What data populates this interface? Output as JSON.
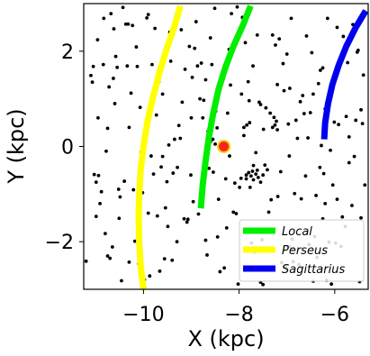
{
  "chart_data": {
    "type": "scatter",
    "xlabel": "X (kpc)",
    "ylabel": "Y (kpc)",
    "xlim": [
      -11.25,
      -5.3
    ],
    "ylim": [
      -3.0,
      3.0
    ],
    "xticks": [
      -10,
      -8,
      -6
    ],
    "yticks": [
      -2,
      0,
      2
    ],
    "xtick_labels": [
      "−10",
      "−8",
      "−6"
    ],
    "ytick_labels": [
      "−2",
      "0",
      "2"
    ],
    "grid": false,
    "legend_position": "lower-right",
    "sun": {
      "x": -8.32,
      "y": 0.0,
      "fill": "#ff2020",
      "edge": "#e8d800"
    },
    "series": [
      {
        "name": "Local",
        "color": "#00ee00",
        "points": [
          [
            -8.8,
            -1.3
          ],
          [
            -8.76,
            -0.8
          ],
          [
            -8.7,
            -0.3
          ],
          [
            -8.63,
            0.2
          ],
          [
            -8.54,
            0.7
          ],
          [
            -8.43,
            1.2
          ],
          [
            -8.29,
            1.65
          ],
          [
            -8.12,
            2.1
          ],
          [
            -7.92,
            2.55
          ],
          [
            -7.76,
            2.95
          ]
        ]
      },
      {
        "name": "Perseus",
        "color": "#ffff00",
        "points": [
          [
            -10.0,
            -3.0
          ],
          [
            -10.06,
            -2.5
          ],
          [
            -10.09,
            -2.0
          ],
          [
            -10.1,
            -1.5
          ],
          [
            -10.09,
            -1.0
          ],
          [
            -10.06,
            -0.5
          ],
          [
            -10.0,
            0.0
          ],
          [
            -9.92,
            0.5
          ],
          [
            -9.81,
            1.0
          ],
          [
            -9.68,
            1.5
          ],
          [
            -9.53,
            2.0
          ],
          [
            -9.36,
            2.5
          ],
          [
            -9.23,
            2.95
          ]
        ]
      },
      {
        "name": "Sagittarius",
        "color": "#0000ee",
        "points": [
          [
            -6.22,
            0.15
          ],
          [
            -6.2,
            0.5
          ],
          [
            -6.14,
            0.9
          ],
          [
            -6.05,
            1.3
          ],
          [
            -5.92,
            1.7
          ],
          [
            -5.76,
            2.1
          ],
          [
            -5.56,
            2.5
          ],
          [
            -5.35,
            2.85
          ]
        ]
      }
    ],
    "stars": [
      [
        -11.2,
        -2.41
      ],
      [
        -11.1,
        1.49
      ],
      [
        -11.07,
        1.35
      ],
      [
        -11.05,
        1.68
      ],
      [
        -11.03,
        -0.59
      ],
      [
        -10.99,
        -1.47
      ],
      [
        -10.99,
        -0.75
      ],
      [
        -10.96,
        2.24
      ],
      [
        -10.94,
        -0.61
      ],
      [
        -10.91,
        -1.2
      ],
      [
        -10.88,
        -0.95
      ],
      [
        -10.84,
        1.72
      ],
      [
        -10.83,
        2.69
      ],
      [
        -10.8,
        -1.83
      ],
      [
        -10.78,
        -0.1
      ],
      [
        -10.75,
        0.38
      ],
      [
        -10.72,
        1.25
      ],
      [
        -10.68,
        2.79
      ],
      [
        -10.65,
        -2.11
      ],
      [
        -10.63,
        1.43
      ],
      [
        -10.62,
        2.47
      ],
      [
        -10.58,
        1.89
      ],
      [
        -10.55,
        1.66
      ],
      [
        -10.52,
        -0.9
      ],
      [
        -10.51,
        -1.51
      ],
      [
        -10.49,
        -1.06
      ],
      [
        -10.46,
        -2.82
      ],
      [
        -10.43,
        2.92
      ],
      [
        -10.4,
        -0.73
      ],
      [
        -10.37,
        2.57
      ],
      [
        -10.34,
        1.69
      ],
      [
        -10.32,
        2.57
      ],
      [
        -10.3,
        -2.43
      ],
      [
        -10.26,
        1.12
      ],
      [
        -10.23,
        2.54
      ],
      [
        -10.21,
        -0.91
      ],
      [
        -10.18,
        -1.99
      ],
      [
        -10.15,
        2.09
      ],
      [
        -10.13,
        1.68
      ],
      [
        -10.1,
        -2.46
      ],
      [
        -10.07,
        0.82
      ],
      [
        -10.05,
        -0.12
      ],
      [
        -10.02,
        -0.97
      ],
      [
        -9.98,
        -2.8
      ],
      [
        -9.95,
        0.27
      ],
      [
        -9.93,
        2.7
      ],
      [
        -9.9,
        2.77
      ],
      [
        -9.87,
        -2.72
      ],
      [
        -9.84,
        -0.2
      ],
      [
        -9.82,
        1.72
      ],
      [
        -9.79,
        -0.58
      ],
      [
        -9.76,
        2.48
      ],
      [
        -9.73,
        0.66
      ],
      [
        -9.71,
        -1.46
      ],
      [
        -9.68,
        1.36
      ],
      [
        -9.66,
        -2.62
      ],
      [
        -9.63,
        -0.43
      ],
      [
        -9.6,
        -0.21
      ],
      [
        -9.56,
        -2.36
      ],
      [
        -9.54,
        -1.29
      ],
      [
        -9.51,
        -0.74
      ],
      [
        -9.49,
        -1.68
      ],
      [
        -9.47,
        0.03
      ],
      [
        -9.43,
        1.79
      ],
      [
        -9.4,
        -2.39
      ],
      [
        -9.38,
        -0.56
      ],
      [
        -9.35,
        0.15
      ],
      [
        -9.32,
        2.59
      ],
      [
        -9.29,
        -0.44
      ],
      [
        -9.26,
        0.44
      ],
      [
        -9.23,
        0.17
      ],
      [
        -9.21,
        2.45
      ],
      [
        -9.19,
        0.93
      ],
      [
        -9.15,
        -1.52
      ],
      [
        -9.13,
        1.62
      ],
      [
        -9.09,
        -1.59
      ],
      [
        -9.07,
        -1.53
      ],
      [
        -9.04,
        2.1
      ],
      [
        -9.01,
        -0.6
      ],
      [
        -8.98,
        1.45
      ],
      [
        -8.96,
        -1.16
      ],
      [
        -8.93,
        2.06
      ],
      [
        -8.9,
        2.62
      ],
      [
        -8.87,
        1.69
      ],
      [
        -8.85,
        -1.42
      ],
      [
        -8.82,
        1.0
      ],
      [
        -8.79,
        1.75
      ],
      [
        -8.76,
        0.6
      ],
      [
        -8.74,
        0.97
      ],
      [
        -8.7,
        -1.97
      ],
      [
        -8.67,
        -2.28
      ],
      [
        -8.65,
        0.32
      ],
      [
        -8.63,
        -0.46
      ],
      [
        -8.6,
        2.28
      ],
      [
        -8.57,
        1.72
      ],
      [
        -8.54,
        -0.54
      ],
      [
        -8.51,
        2.9
      ],
      [
        -8.49,
        0.74
      ],
      [
        -8.46,
        0.39
      ],
      [
        -8.43,
        -1.11
      ],
      [
        -8.4,
        -2.63
      ],
      [
        -8.37,
        -0.02
      ],
      [
        -8.34,
        1.56
      ],
      [
        -8.31,
        -2.55
      ],
      [
        -8.28,
        -0.68
      ],
      [
        -8.26,
        -1.71
      ],
      [
        -8.24,
        0.7
      ],
      [
        -8.21,
        2.04
      ],
      [
        -8.18,
        1.29
      ],
      [
        -8.16,
        2.79
      ],
      [
        -8.12,
        -1.38
      ],
      [
        -8.09,
        -0.77
      ],
      [
        -8.06,
        -1.41
      ],
      [
        -8.04,
        2.93
      ],
      [
        -8.02,
        -2.89
      ],
      [
        -7.99,
        -0.86
      ],
      [
        -7.96,
        -0.67
      ],
      [
        -7.93,
        2.71
      ],
      [
        -7.9,
        0.23
      ],
      [
        -7.87,
        2.18
      ],
      [
        -7.85,
        -0.6
      ],
      [
        -7.81,
        1.36
      ],
      [
        -7.79,
        0.96
      ],
      [
        -7.77,
        -0.86
      ],
      [
        -7.74,
        -2.03
      ],
      [
        -7.71,
        1.69
      ],
      [
        -7.68,
        -2.22
      ],
      [
        -7.65,
        -0.13
      ],
      [
        -7.62,
        2.34
      ],
      [
        -7.6,
        -1.8
      ],
      [
        -7.58,
        0.93
      ],
      [
        -7.55,
        0.88
      ],
      [
        -7.52,
        -1.96
      ],
      [
        -7.49,
        0.36
      ],
      [
        -7.46,
        -0.39
      ],
      [
        -7.44,
        0.81
      ],
      [
        -7.41,
        -0.49
      ],
      [
        -7.38,
        -1.38
      ],
      [
        -7.35,
        0.7
      ],
      [
        -7.33,
        -1.12
      ],
      [
        -7.3,
        2.34
      ],
      [
        -7.27,
        0.61
      ],
      [
        -7.24,
        2.13
      ],
      [
        -7.22,
        0.53
      ],
      [
        -7.19,
        -1.05
      ],
      [
        -7.16,
        2.26
      ],
      [
        -7.13,
        -0.53
      ],
      [
        -7.11,
        -2.44
      ],
      [
        -7.08,
        1.74
      ],
      [
        -7.06,
        1.17
      ],
      [
        -7.03,
        -2.52
      ],
      [
        -7.0,
        1.94
      ],
      [
        -6.97,
        0.47
      ],
      [
        -6.94,
        1.22
      ],
      [
        -6.91,
        2.69
      ],
      [
        -6.89,
        -1.95
      ],
      [
        -6.87,
        -2.42
      ],
      [
        -6.84,
        -0.99
      ],
      [
        -6.81,
        0.55
      ],
      [
        -6.78,
        0.17
      ],
      [
        -6.75,
        -2.48
      ],
      [
        -6.72,
        0.94
      ],
      [
        -6.7,
        -2.56
      ],
      [
        -6.67,
        1.07
      ],
      [
        -6.64,
        0.69
      ],
      [
        -6.61,
        -0.62
      ],
      [
        -6.59,
        2.32
      ],
      [
        -6.56,
        0.18
      ],
      [
        -6.54,
        -2.06
      ],
      [
        -6.51,
        0.71
      ],
      [
        -6.48,
        1.97
      ],
      [
        -6.45,
        -2.83
      ],
      [
        -6.42,
        -1.89
      ],
      [
        -6.39,
        -1.03
      ],
      [
        -6.37,
        -2.33
      ],
      [
        -6.34,
        1.32
      ],
      [
        -6.31,
        -0.44
      ],
      [
        -6.28,
        0.02
      ],
      [
        -6.25,
        -1.52
      ],
      [
        -6.23,
        -0.57
      ],
      [
        -6.2,
        0.79
      ],
      [
        -6.17,
        -2.81
      ],
      [
        -6.15,
        2.69
      ],
      [
        -6.12,
        -2.01
      ],
      [
        -6.09,
        -0.08
      ],
      [
        -6.07,
        -2.89
      ],
      [
        -6.04,
        -0.81
      ],
      [
        -6.01,
        0.51
      ],
      [
        -5.98,
        -2.03
      ],
      [
        -5.95,
        -1.11
      ],
      [
        -5.92,
        0.46
      ],
      [
        -5.9,
        1.66
      ],
      [
        -5.87,
        -2.1
      ],
      [
        -5.84,
        -1.48
      ],
      [
        -5.82,
        2.31
      ],
      [
        -5.78,
        -1.68
      ],
      [
        -5.76,
        0.63
      ],
      [
        -5.73,
        1.76
      ],
      [
        -5.7,
        -0.34
      ],
      [
        -5.67,
        2.33
      ],
      [
        -5.64,
        -1.24
      ],
      [
        -5.62,
        2.56
      ],
      [
        -5.59,
        -0.21
      ],
      [
        -5.56,
        0.55
      ],
      [
        -5.53,
        1.98
      ],
      [
        -5.51,
        2.02
      ],
      [
        -5.48,
        -2.84
      ],
      [
        -5.45,
        0.77
      ],
      [
        -5.42,
        0.48
      ],
      [
        -5.4,
        1.5
      ],
      [
        -5.37,
        -0.81
      ],
      [
        -10.95,
        0.6
      ],
      [
        -10.6,
        0.9
      ],
      [
        -10.3,
        0.4
      ],
      [
        -9.9,
        -1.4
      ],
      [
        -9.6,
        1.1
      ],
      [
        -9.3,
        -2.0
      ],
      [
        -9.0,
        0.6
      ],
      [
        -8.7,
        1.4
      ],
      [
        -8.45,
        -1.9
      ],
      [
        -8.2,
        -0.2
      ],
      [
        -7.95,
        1.1
      ],
      [
        -7.7,
        -0.4
      ],
      [
        -7.45,
        -2.6
      ],
      [
        -7.2,
        1.3
      ],
      [
        -6.95,
        -0.2
      ],
      [
        -6.7,
        -1.1
      ],
      [
        -6.45,
        1.1
      ],
      [
        -6.2,
        -1.2
      ],
      [
        -5.95,
        2.5
      ],
      [
        -5.7,
        0.2
      ],
      [
        -5.45,
        -1.5
      ],
      [
        -7.8,
        -0.55
      ],
      [
        -7.75,
        -0.62
      ],
      [
        -7.7,
        -0.7
      ],
      [
        -7.65,
        -0.58
      ],
      [
        -7.6,
        -0.65
      ],
      [
        -7.55,
        -0.75
      ],
      [
        -7.85,
        -0.68
      ],
      [
        -7.72,
        -0.52
      ],
      [
        -7.62,
        -0.5
      ],
      [
        -7.5,
        -0.6
      ],
      [
        -7.9,
        0.4
      ],
      [
        -7.84,
        0.45
      ],
      [
        -7.78,
        0.5
      ],
      [
        -7.3,
        0.4
      ],
      [
        -7.25,
        0.45
      ],
      [
        -7.2,
        0.35
      ],
      [
        -8.6,
        0.1
      ],
      [
        -8.55,
        0.15
      ],
      [
        -8.5,
        0.05
      ],
      [
        -10.75,
        -2.3
      ],
      [
        -10.7,
        -2.35
      ],
      [
        -6.95,
        -2.1
      ],
      [
        -6.9,
        -2.15
      ],
      [
        -7.55,
        -2.85
      ],
      [
        -7.5,
        -2.9
      ],
      [
        -9.45,
        2.4
      ],
      [
        -9.4,
        2.45
      ],
      [
        -6.3,
        1.6
      ],
      [
        -6.25,
        1.65
      ]
    ]
  }
}
